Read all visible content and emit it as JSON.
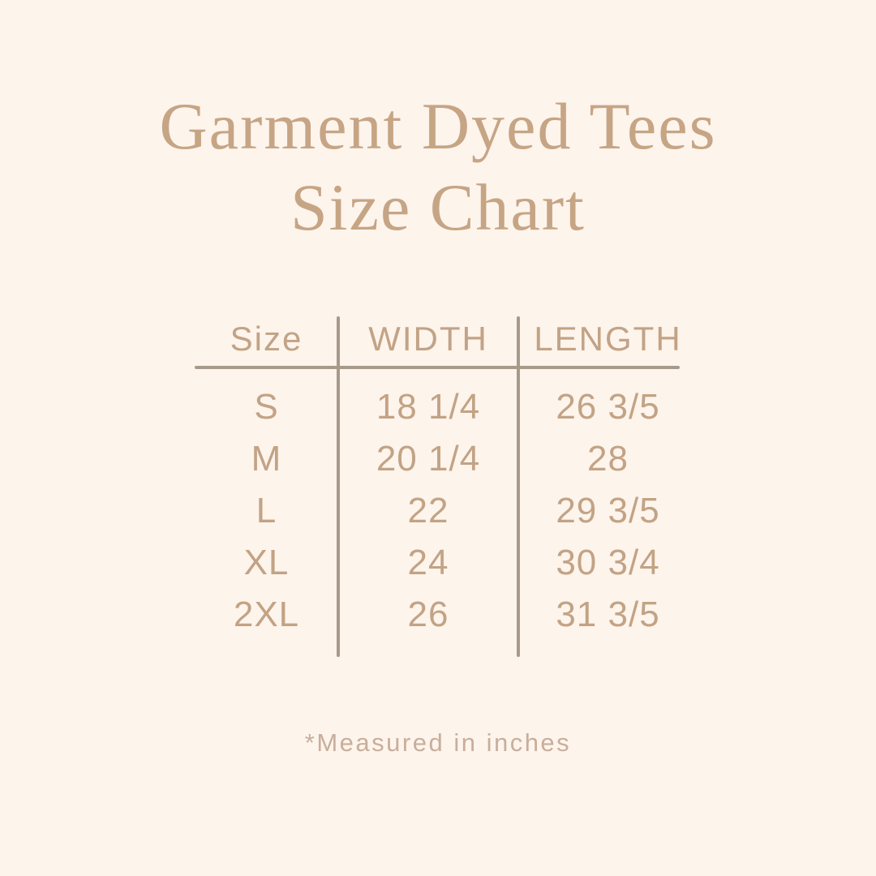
{
  "page": {
    "title_line1": "Garment Dyed Tees",
    "title_line2": "Size Chart",
    "footnote": "*Measured in inches"
  },
  "table": {
    "headers": [
      "Size",
      "WIDTH",
      "LENGTH"
    ],
    "rows": [
      {
        "size": "S",
        "width": "18 1/4",
        "length": "26 3/5"
      },
      {
        "size": "M",
        "width": "20 1/4",
        "length": "28"
      },
      {
        "size": "L",
        "width": "22",
        "length": "29 3/5"
      },
      {
        "size": "XL",
        "width": "24",
        "length": "30 3/4"
      },
      {
        "size": "2XL",
        "width": "26",
        "length": "31 3/5"
      }
    ],
    "units_note": "inches"
  },
  "colors": {
    "background": "#fdf4ec",
    "title_text": "#c6a585",
    "table_text": "#c2a385",
    "rule": "#a89a8b",
    "footnote_text": "#c9ae9b"
  }
}
